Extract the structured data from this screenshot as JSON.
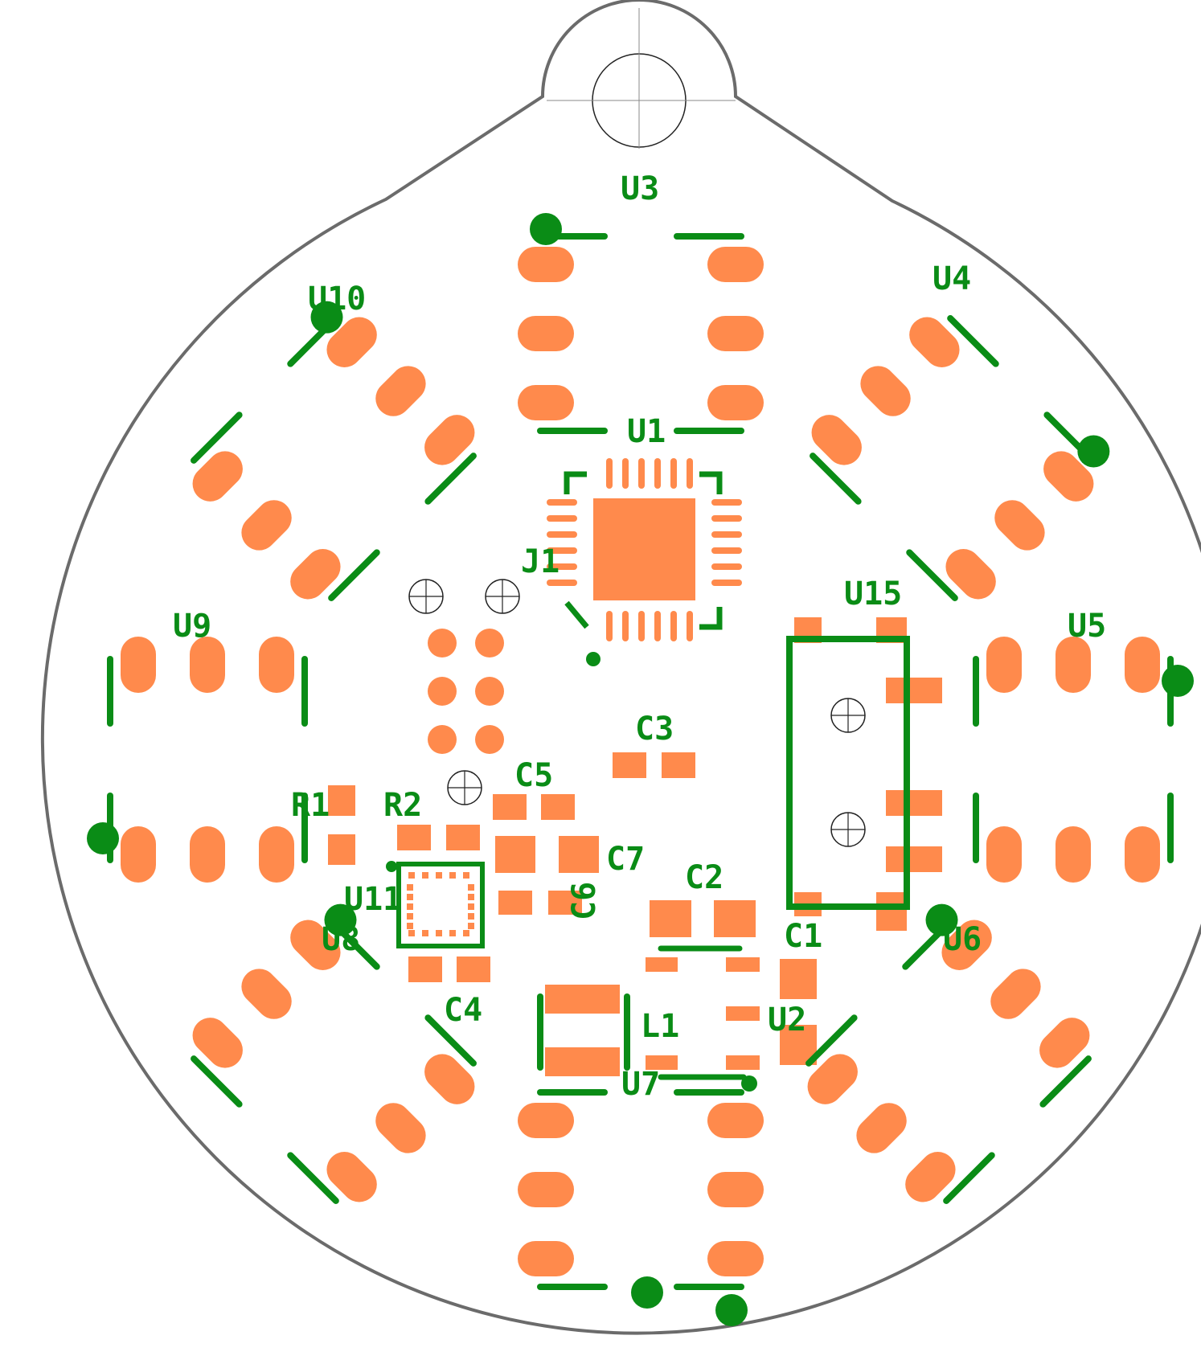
{
  "colors": {
    "background": "#ffffff",
    "outline": "#6b6b6b",
    "silkscreen": "#0a8c16",
    "copper_pad": "#ff8a4c",
    "drill": "#222222"
  },
  "components": {
    "U1": "U1",
    "U2": "U2",
    "U3": "U3",
    "U4": "U4",
    "U5": "U5",
    "U6": "U6",
    "U7": "U7",
    "U8": "U8",
    "U9": "U9",
    "U10": "U10",
    "U11": "U11",
    "U15": "U15",
    "J1": "J1",
    "R1": "R1",
    "R2": "R2",
    "C1": "C1",
    "C2": "C2",
    "C3": "C3",
    "C4": "C4",
    "C5": "C5",
    "C7": "C7",
    "L1": "L1",
    "C6": "C6"
  }
}
